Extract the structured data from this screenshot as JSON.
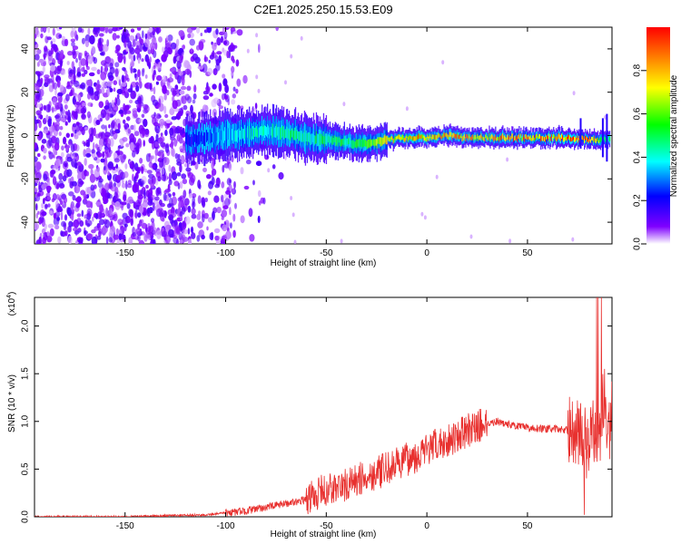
{
  "title": "C2E1.2025.250.15.53.E09",
  "chart_data": [
    {
      "type": "heatmap",
      "xlabel": "Height of straight line (km)",
      "ylabel": "Frequency (Hz)",
      "xlim": [
        -195,
        92
      ],
      "ylim": [
        -50,
        50
      ],
      "xticks": [
        -150,
        -100,
        -50,
        0,
        50
      ],
      "yticks": [
        -40,
        -20,
        0,
        20,
        40
      ],
      "colorbar": {
        "label": "Normalized spectral amplitude",
        "range": [
          0,
          1
        ],
        "ticks": [
          "0.0",
          "0.2",
          "0.4",
          "0.6",
          "0.8"
        ],
        "colors": [
          "#ffffff",
          "#7f00ff",
          "#0000ff",
          "#00ffff",
          "#00ff00",
          "#ffff00",
          "#ff7f00",
          "#ff0000"
        ]
      },
      "ridge": {
        "x": [
          -118,
          -100,
          -80,
          -70,
          -60,
          -50,
          -40,
          -30,
          -20,
          -10,
          0,
          10,
          20,
          30,
          40,
          50,
          60,
          70,
          80,
          90
        ],
        "frequency": [
          -2,
          0,
          2,
          1,
          -1,
          -2,
          -3,
          -4,
          -2,
          -1,
          -1,
          0,
          -1,
          -1,
          -1,
          -1,
          -1,
          -1,
          -2,
          -2
        ],
        "amplitude": [
          0.2,
          0.35,
          0.4,
          0.45,
          0.45,
          0.5,
          0.5,
          0.55,
          0.7,
          0.75,
          0.8,
          0.8,
          0.8,
          0.75,
          0.85,
          0.8,
          0.8,
          0.85,
          0.9,
          0.5
        ]
      }
    },
    {
      "type": "line",
      "xlabel": "Height of straight line (km)",
      "ylabel": "SNR (10 * v/v)",
      "scale_label": "(x10",
      "scale_exp": "4",
      "scale_close": ")",
      "xlim": [
        -195,
        92
      ],
      "ylim": [
        0,
        2.3
      ],
      "xticks": [
        -150,
        -100,
        -50,
        0,
        50
      ],
      "yticks": [
        "0.0",
        "0.5",
        "1.0",
        "1.5",
        "2.0"
      ],
      "color": "#e8302e",
      "series": [
        {
          "x": [
            -195,
            -150,
            -110,
            -100,
            -90,
            -80,
            -70,
            -60,
            -55,
            -50,
            -45,
            -40,
            -35,
            -30,
            -25,
            -20,
            -15,
            -10,
            -5,
            0,
            5,
            10,
            15,
            20,
            25,
            30,
            35,
            40,
            45,
            50,
            55,
            60,
            65,
            70,
            75,
            78,
            80,
            83,
            86,
            88,
            90,
            92
          ],
          "values": [
            0.0,
            0.0,
            0.02,
            0.04,
            0.06,
            0.1,
            0.14,
            0.18,
            0.24,
            0.28,
            0.3,
            0.33,
            0.38,
            0.42,
            0.46,
            0.5,
            0.55,
            0.6,
            0.64,
            0.7,
            0.75,
            0.8,
            0.85,
            0.9,
            0.95,
            0.98,
            1.0,
            0.97,
            0.95,
            0.93,
            0.93,
            0.92,
            0.92,
            0.91,
            0.9,
            0.85,
            0.7,
            0.92,
            0.9,
            1.3,
            0.8,
            1.1
          ]
        }
      ]
    }
  ]
}
